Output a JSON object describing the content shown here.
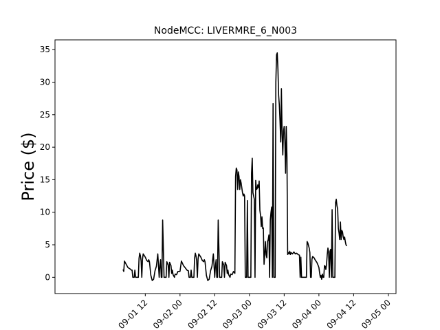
{
  "chart_data": {
    "type": "line",
    "title": "NodeMCC: LIVERMRE_6_N003",
    "xlabel": "",
    "ylabel": "Price ($)",
    "xlim": [
      0.2,
      5.11
    ],
    "ylim": [
      -2.5,
      36.5
    ],
    "grid": false,
    "x_unit": "days since 09-01 00",
    "xticks": [
      {
        "value": 1.5,
        "label": "09-01 12"
      },
      {
        "value": 2.0,
        "label": "09-02 00"
      },
      {
        "value": 2.5,
        "label": "09-02 12"
      },
      {
        "value": 3.0,
        "label": "09-03 00"
      },
      {
        "value": 3.5,
        "label": "09-03 12"
      },
      {
        "value": 4.0,
        "label": "09-04 00"
      },
      {
        "value": 4.5,
        "label": "09-04 12"
      },
      {
        "value": 5.0,
        "label": "09-05 00"
      }
    ],
    "yticks": [
      0,
      5,
      10,
      15,
      20,
      25,
      30,
      35
    ],
    "series": [
      {
        "name": "LIVERMRE_6_N003",
        "color": "#000000",
        "points": [
          [
            1.18,
            1.2
          ],
          [
            1.19,
            0.9
          ],
          [
            1.2,
            2.5
          ],
          [
            1.22,
            2.1
          ],
          [
            1.25,
            1.5
          ],
          [
            1.28,
            1.3
          ],
          [
            1.3,
            1.1
          ],
          [
            1.31,
            1.1
          ],
          [
            1.32,
            0.0
          ],
          [
            1.34,
            0.0
          ],
          [
            1.35,
            1.1
          ],
          [
            1.36,
            0.0
          ],
          [
            1.4,
            0.0
          ],
          [
            1.41,
            2.9
          ],
          [
            1.42,
            3.7
          ],
          [
            1.43,
            3.3
          ],
          [
            1.44,
            2.5
          ],
          [
            1.45,
            0.0
          ],
          [
            1.46,
            2.8
          ],
          [
            1.47,
            3.6
          ],
          [
            1.5,
            3.1
          ],
          [
            1.52,
            2.6
          ],
          [
            1.54,
            2.4
          ],
          [
            1.55,
            2.7
          ],
          [
            1.56,
            2.4
          ],
          [
            1.58,
            0.3
          ],
          [
            1.6,
            -0.5
          ],
          [
            1.62,
            -0.3
          ],
          [
            1.64,
            1.0
          ],
          [
            1.66,
            1.7
          ],
          [
            1.68,
            3.6
          ],
          [
            1.7,
            0.0
          ],
          [
            1.71,
            1.8
          ],
          [
            1.72,
            2.7
          ],
          [
            1.73,
            0.0
          ],
          [
            1.74,
            0.0
          ],
          [
            1.75,
            8.8
          ],
          [
            1.76,
            4.5
          ],
          [
            1.77,
            0.0
          ],
          [
            1.8,
            0.0
          ],
          [
            1.81,
            2.4
          ],
          [
            1.83,
            1.9
          ],
          [
            1.84,
            0.0
          ],
          [
            1.85,
            2.3
          ],
          [
            1.87,
            1.8
          ],
          [
            1.88,
            0.6
          ],
          [
            1.89,
            1.1
          ],
          [
            1.9,
            0.4
          ],
          [
            1.92,
            0.0
          ],
          [
            1.93,
            0.5
          ],
          [
            1.95,
            0.4
          ],
          [
            1.97,
            0.9
          ],
          [
            2.0,
            0.9
          ],
          [
            2.02,
            2.5
          ],
          [
            2.05,
            1.8
          ],
          [
            2.08,
            1.4
          ],
          [
            2.1,
            1.1
          ],
          [
            2.12,
            1.0
          ],
          [
            2.13,
            0.0
          ],
          [
            2.15,
            0.0
          ],
          [
            2.16,
            1.1
          ],
          [
            2.17,
            0.0
          ],
          [
            2.2,
            0.0
          ],
          [
            2.21,
            2.9
          ],
          [
            2.22,
            3.7
          ],
          [
            2.23,
            3.3
          ],
          [
            2.24,
            2.5
          ],
          [
            2.25,
            0.0
          ],
          [
            2.26,
            2.8
          ],
          [
            2.27,
            3.6
          ],
          [
            2.3,
            3.1
          ],
          [
            2.32,
            2.6
          ],
          [
            2.34,
            2.4
          ],
          [
            2.35,
            2.7
          ],
          [
            2.36,
            2.4
          ],
          [
            2.38,
            0.3
          ],
          [
            2.4,
            -0.5
          ],
          [
            2.42,
            -0.3
          ],
          [
            2.44,
            1.0
          ],
          [
            2.46,
            1.7
          ],
          [
            2.48,
            3.6
          ],
          [
            2.5,
            0.0
          ],
          [
            2.51,
            1.8
          ],
          [
            2.52,
            2.7
          ],
          [
            2.53,
            0.0
          ],
          [
            2.54,
            0.0
          ],
          [
            2.55,
            8.8
          ],
          [
            2.56,
            4.5
          ],
          [
            2.57,
            0.0
          ],
          [
            2.6,
            0.0
          ],
          [
            2.61,
            2.4
          ],
          [
            2.63,
            1.9
          ],
          [
            2.64,
            0.0
          ],
          [
            2.65,
            2.3
          ],
          [
            2.67,
            1.8
          ],
          [
            2.68,
            0.6
          ],
          [
            2.69,
            1.1
          ],
          [
            2.7,
            0.4
          ],
          [
            2.72,
            0.0
          ],
          [
            2.73,
            0.5
          ],
          [
            2.75,
            0.4
          ],
          [
            2.77,
            0.9
          ],
          [
            2.79,
            0.6
          ],
          [
            2.8,
            15.5
          ],
          [
            2.81,
            16.8
          ],
          [
            2.82,
            16.5
          ],
          [
            2.83,
            13.5
          ],
          [
            2.84,
            16.2
          ],
          [
            2.85,
            15.5
          ],
          [
            2.86,
            13.5
          ],
          [
            2.87,
            15.0
          ],
          [
            2.88,
            14.5
          ],
          [
            2.9,
            13.0
          ],
          [
            2.91,
            12.5
          ],
          [
            2.92,
            12.8
          ],
          [
            2.93,
            12.5
          ],
          [
            2.94,
            0.0
          ],
          [
            2.95,
            0.0
          ],
          [
            2.96,
            0.0
          ],
          [
            2.97,
            11.8
          ],
          [
            2.98,
            0.0
          ],
          [
            3.0,
            0.0
          ],
          [
            3.02,
            0.0
          ],
          [
            3.03,
            16.0
          ],
          [
            3.04,
            18.3
          ],
          [
            3.05,
            13.0
          ],
          [
            3.06,
            12.5
          ],
          [
            3.07,
            12.0
          ],
          [
            3.08,
            0.0
          ],
          [
            3.09,
            14.9
          ],
          [
            3.1,
            13.5
          ],
          [
            3.11,
            13.6
          ],
          [
            3.12,
            14.2
          ],
          [
            3.13,
            13.8
          ],
          [
            3.14,
            14.8
          ],
          [
            3.15,
            10.3
          ],
          [
            3.16,
            9.5
          ],
          [
            3.17,
            7.8
          ],
          [
            3.18,
            9.3
          ],
          [
            3.19,
            7.5
          ],
          [
            3.2,
            7.6
          ],
          [
            3.21,
            2.0
          ],
          [
            3.22,
            3.5
          ],
          [
            3.23,
            5.5
          ],
          [
            3.24,
            3.5
          ],
          [
            3.25,
            3.0
          ],
          [
            3.26,
            5.5
          ],
          [
            3.27,
            5.8
          ],
          [
            3.28,
            6.5
          ],
          [
            3.29,
            0.0
          ],
          [
            3.3,
            8.8
          ],
          [
            3.31,
            10.0
          ],
          [
            3.32,
            10.8
          ],
          [
            3.33,
            0.0
          ],
          [
            3.34,
            26.7
          ],
          [
            3.35,
            0.0
          ],
          [
            3.37,
            0.0
          ],
          [
            3.38,
            30.0
          ],
          [
            3.39,
            34.2
          ],
          [
            3.4,
            34.5
          ],
          [
            3.41,
            32.0
          ],
          [
            3.42,
            28.0
          ],
          [
            3.43,
            26.5
          ],
          [
            3.44,
            24.0
          ],
          [
            3.45,
            20.8
          ],
          [
            3.46,
            29.0
          ],
          [
            3.47,
            22.0
          ],
          [
            3.48,
            18.8
          ],
          [
            3.49,
            22.5
          ],
          [
            3.5,
            23.2
          ],
          [
            3.51,
            21.0
          ],
          [
            3.52,
            16.0
          ],
          [
            3.53,
            23.2
          ],
          [
            3.54,
            18.5
          ],
          [
            3.55,
            3.5
          ],
          [
            3.56,
            3.8
          ],
          [
            3.57,
            3.6
          ],
          [
            3.58,
            4.0
          ],
          [
            3.59,
            3.5
          ],
          [
            3.6,
            3.8
          ],
          [
            3.62,
            3.6
          ],
          [
            3.64,
            3.9
          ],
          [
            3.66,
            3.6
          ],
          [
            3.68,
            3.7
          ],
          [
            3.7,
            3.5
          ],
          [
            3.72,
            3.4
          ],
          [
            3.73,
            0.0
          ],
          [
            3.74,
            3.1
          ],
          [
            3.75,
            0.0
          ],
          [
            3.78,
            0.0
          ],
          [
            3.8,
            0.0
          ],
          [
            3.82,
            0.0
          ],
          [
            3.83,
            5.5
          ],
          [
            3.84,
            5.3
          ],
          [
            3.86,
            4.5
          ],
          [
            3.87,
            3.8
          ],
          [
            3.88,
            0.0
          ],
          [
            3.89,
            0.0
          ],
          [
            3.9,
            2.8
          ],
          [
            3.91,
            3.2
          ],
          [
            3.93,
            3.0
          ],
          [
            3.95,
            2.6
          ],
          [
            3.97,
            2.3
          ],
          [
            3.99,
            1.8
          ],
          [
            4.0,
            1.5
          ],
          [
            4.01,
            0.7
          ],
          [
            4.02,
            0.0
          ],
          [
            4.03,
            0.3
          ],
          [
            4.04,
            -0.3
          ],
          [
            4.05,
            0.5
          ],
          [
            4.06,
            0.0
          ],
          [
            4.07,
            0.0
          ],
          [
            4.08,
            1.8
          ],
          [
            4.09,
            1.7
          ],
          [
            4.1,
            1.2
          ],
          [
            4.11,
            2.0
          ],
          [
            4.12,
            3.5
          ],
          [
            4.13,
            4.5
          ],
          [
            4.14,
            3.8
          ],
          [
            4.15,
            0.0
          ],
          [
            4.16,
            4.0
          ],
          [
            4.17,
            4.3
          ],
          [
            4.18,
            0.0
          ],
          [
            4.19,
            10.4
          ],
          [
            4.2,
            0.0
          ],
          [
            4.22,
            0.0
          ],
          [
            4.23,
            0.0
          ],
          [
            4.24,
            11.5
          ],
          [
            4.25,
            12.0
          ],
          [
            4.26,
            11.0
          ],
          [
            4.27,
            10.5
          ],
          [
            4.28,
            7.5
          ],
          [
            4.29,
            6.8
          ],
          [
            4.3,
            5.8
          ],
          [
            4.31,
            8.5
          ],
          [
            4.32,
            5.8
          ],
          [
            4.33,
            7.2
          ],
          [
            4.34,
            7.0
          ],
          [
            4.35,
            6.2
          ],
          [
            4.36,
            5.8
          ],
          [
            4.37,
            6.2
          ],
          [
            4.38,
            5.5
          ],
          [
            4.39,
            5.0
          ],
          [
            4.4,
            4.8
          ]
        ]
      }
    ]
  }
}
